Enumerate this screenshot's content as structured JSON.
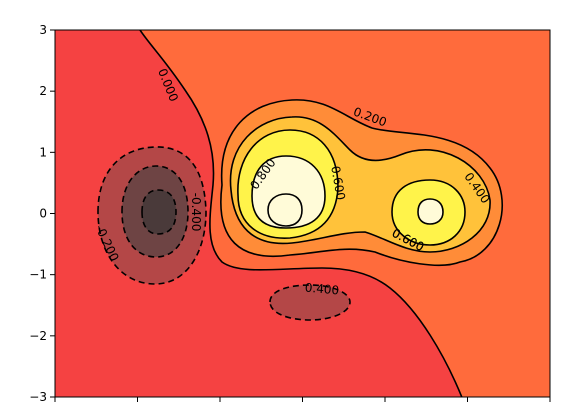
{
  "chart_data": {
    "type": "contour",
    "title": "",
    "xlabel": "",
    "ylabel": "",
    "xlim": [
      -3,
      3
    ],
    "ylim": [
      -3,
      3
    ],
    "y_ticks": [
      3,
      2,
      1,
      0,
      -1,
      -2,
      -3
    ],
    "y_tick_labels": [
      "3",
      "2",
      "1",
      "0",
      "−1",
      "−2",
      "−3"
    ],
    "x_ticks": [
      -3,
      -2,
      -1,
      0,
      1,
      2,
      3
    ],
    "levels": [
      -0.4,
      -0.2,
      0.0,
      0.2,
      0.4,
      0.6,
      0.8
    ],
    "colormap": "hot",
    "fill_colors": {
      "below_-0.4": "#4a3a3a",
      "-0.4_to_-0.2": "#6e4444",
      "-0.2_to_0.0": "#b44747",
      "0.0_to_0.2": "#f54242",
      "0.2_to_0.4": "#ff6b3c",
      "0.4_to_0.6": "#ff8c38",
      "0.6_to_0.8": "#ffc23a",
      "0.8_to_1.0": "#fff34a",
      "above_1.0": "#fffbd8"
    },
    "contour_labels": [
      "0.000",
      "0.200",
      "0.400",
      "0.600",
      "0.800",
      "0.600",
      "0.400",
      "-0.200",
      "-0.200",
      "-0.400"
    ]
  }
}
